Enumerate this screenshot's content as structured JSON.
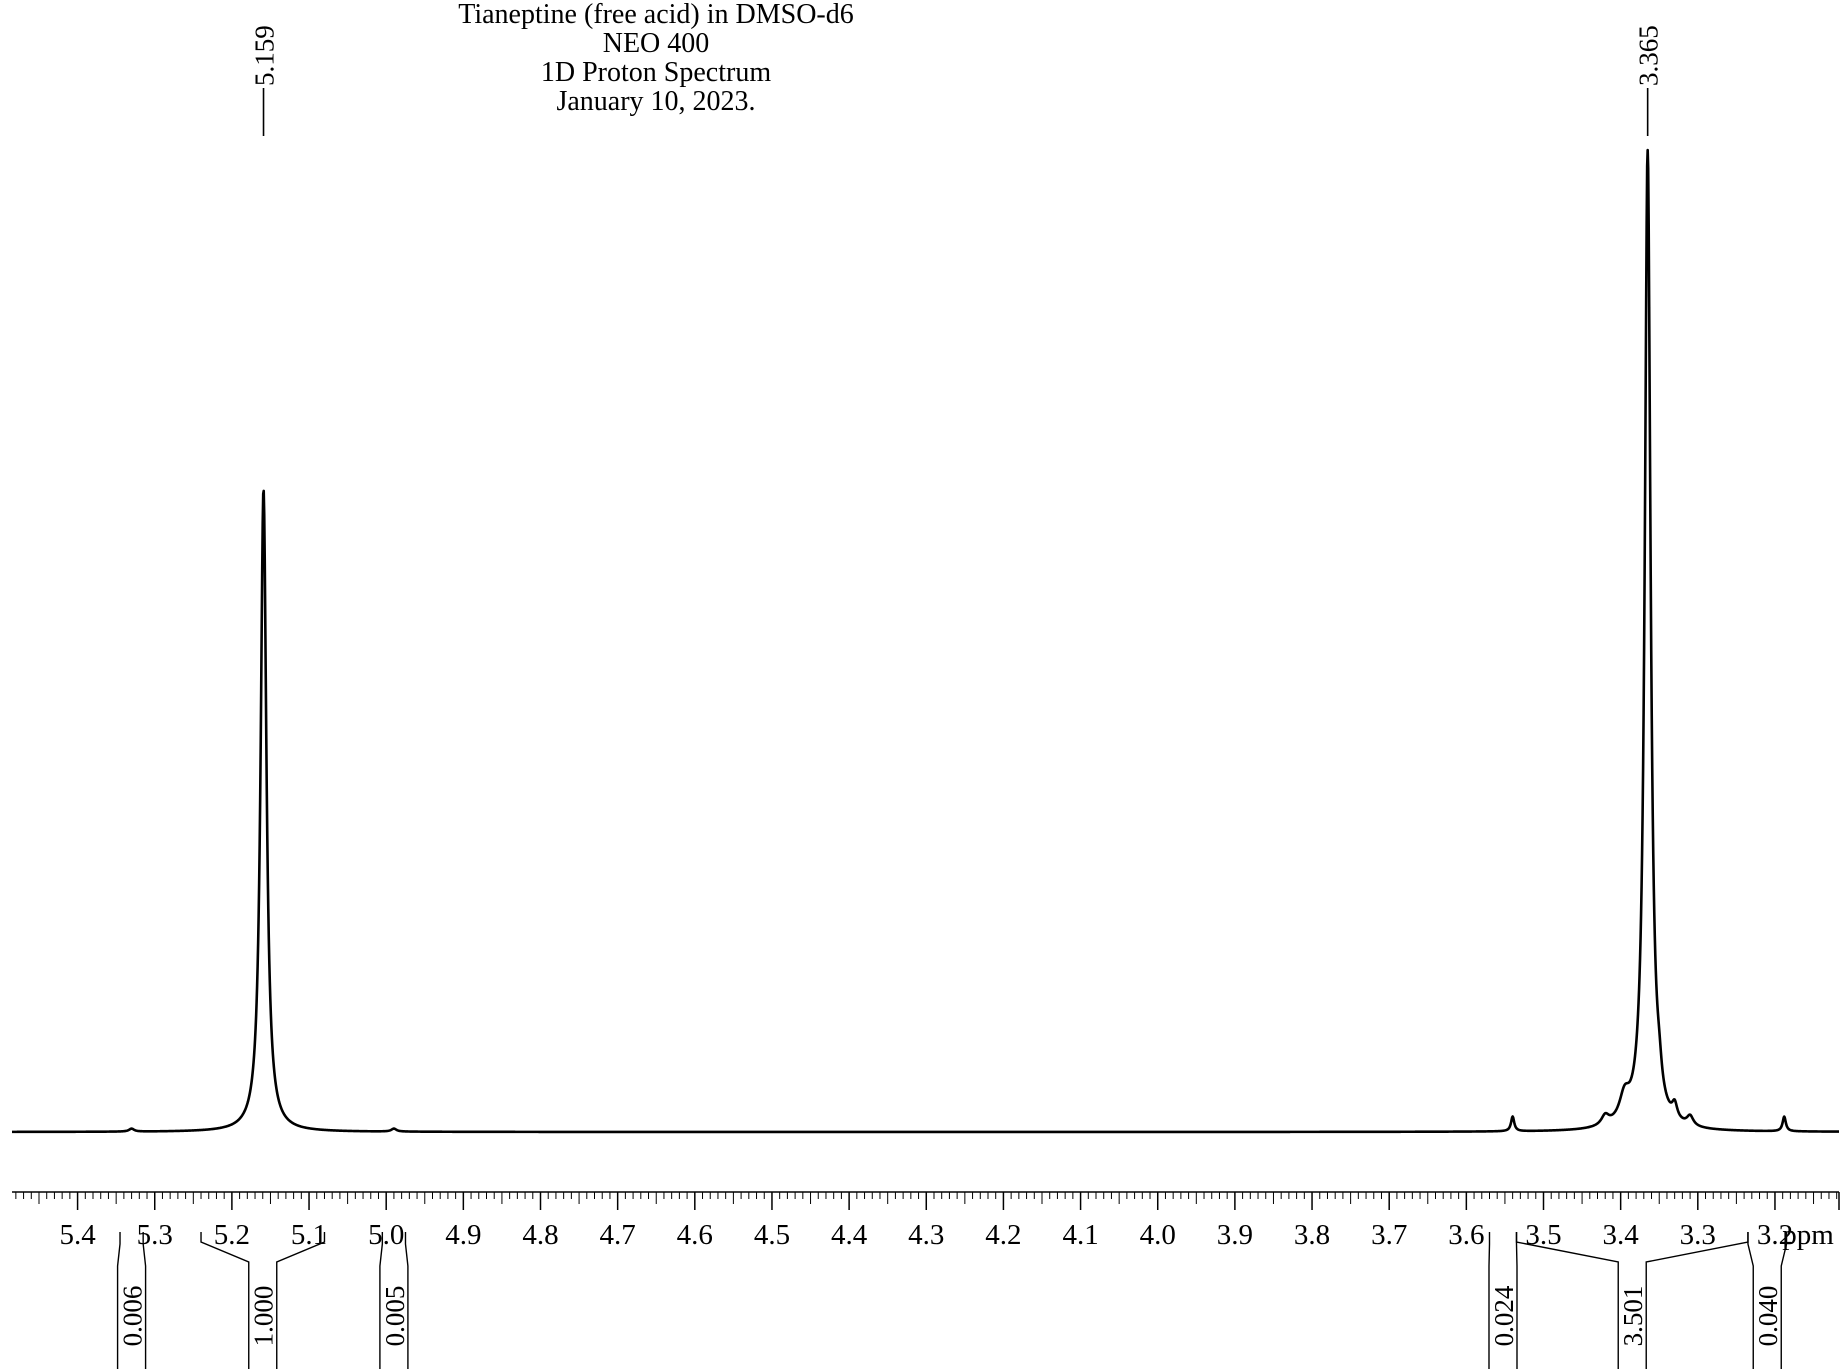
{
  "header": {
    "lines": [
      "Tianeptine (free acid) in DMSO-d6",
      "NEO 400",
      "1D Proton Spectrum",
      "January 10, 2023."
    ]
  },
  "chart_data": {
    "type": "line",
    "title": "Tianeptine (free acid) in DMSO-d6",
    "xlabel": "ppm",
    "x_reversed": true,
    "xlim": [
      5.485,
      3.117
    ],
    "x_ticks": [
      "5.4",
      "5.3",
      "5.2",
      "5.1",
      "5.0",
      "4.9",
      "4.8",
      "4.7",
      "4.6",
      "4.5",
      "4.4",
      "4.3",
      "4.2",
      "4.1",
      "4.0",
      "3.9",
      "3.8",
      "3.7",
      "3.6",
      "3.5",
      "3.4",
      "3.3",
      "3.2"
    ],
    "grid": false,
    "peak_labels": [
      "5.159",
      "3.365"
    ],
    "peaks": [
      {
        "ppm": 5.159,
        "rel_height": 0.655,
        "width": 0.0045
      },
      {
        "ppm": 3.365,
        "rel_height": 1.0,
        "width": 0.0045
      },
      {
        "ppm": 5.33,
        "rel_height": 0.003,
        "width": 0.004
      },
      {
        "ppm": 4.99,
        "rel_height": 0.003,
        "width": 0.004
      },
      {
        "ppm": 3.54,
        "rel_height": 0.015,
        "width": 0.0025
      },
      {
        "ppm": 3.188,
        "rel_height": 0.015,
        "width": 0.0025
      },
      {
        "ppm": 3.35,
        "rel_height": 0.02,
        "width": 0.004
      },
      {
        "ppm": 3.33,
        "rel_height": 0.015,
        "width": 0.004
      },
      {
        "ppm": 3.31,
        "rel_height": 0.01,
        "width": 0.005
      },
      {
        "ppm": 3.42,
        "rel_height": 0.01,
        "width": 0.006
      },
      {
        "ppm": 3.395,
        "rel_height": 0.025,
        "width": 0.008
      }
    ],
    "integrals": [
      {
        "from": 5.345,
        "to": 5.315,
        "value": "0.006"
      },
      {
        "from": 5.24,
        "to": 5.08,
        "value": "1.000"
      },
      {
        "from": 5.005,
        "to": 4.975,
        "value": "0.005"
      },
      {
        "from": 3.57,
        "to": 3.535,
        "value": "0.024"
      },
      {
        "from": 3.535,
        "to": 3.235,
        "value": "3.501"
      },
      {
        "from": 3.235,
        "to": 3.185,
        "value": "0.040"
      }
    ]
  }
}
